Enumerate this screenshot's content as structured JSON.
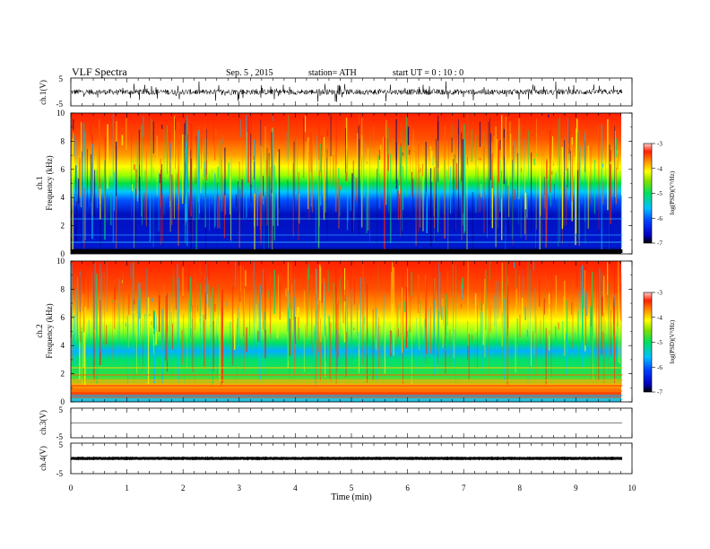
{
  "header": {
    "title": "VLF  Spectra",
    "date": "Sep. 5  , 2015",
    "station": "station= ATH",
    "start": "start  UT  =   0  : 10 : 0"
  },
  "chart_data": [
    {
      "type": "line",
      "ylabel": "ch.1(V)",
      "ylim": [
        -5,
        5
      ],
      "y_ticks": [
        "5",
        "-5"
      ],
      "description_values": {
        "baseline": 0,
        "noise_amplitude_approx": 2.5
      }
    },
    {
      "type": "heatmap",
      "ylabel_channel": "ch.1",
      "ylabel": "Frequency  (kHz)",
      "ylim": [
        0,
        10
      ],
      "y_ticks": [
        "0",
        "2",
        "4",
        "6",
        "8",
        "10"
      ],
      "colorbar": {
        "label": "log(PSD)(V²/Hz)",
        "range": [
          -7,
          -3
        ],
        "ticks": [
          "-3",
          "-4",
          "-5",
          "-6",
          "-7"
        ]
      }
    },
    {
      "type": "heatmap",
      "ylabel_channel": "ch.2",
      "ylabel": "Frequency  (kHz)",
      "ylim": [
        0,
        10
      ],
      "y_ticks": [
        "0",
        "2",
        "4",
        "6",
        "8",
        "10"
      ],
      "colorbar": {
        "label": "log(PSD)(V²/Hz)",
        "range": [
          -7,
          -3
        ],
        "ticks": [
          "-3",
          "-4",
          "-5",
          "-6",
          "-7"
        ]
      }
    },
    {
      "type": "line",
      "ylabel": "ch.3(V)",
      "ylim": [
        -5,
        5
      ],
      "y_ticks": [
        "5",
        "-5"
      ],
      "description_values": {
        "baseline": 0,
        "noise_amplitude_approx": 0.1
      }
    },
    {
      "type": "line",
      "ylabel": "ch.4(V)",
      "ylim": [
        -5,
        5
      ],
      "y_ticks": [
        "5",
        "-5"
      ],
      "description_values": {
        "baseline": 0,
        "noise_amplitude_approx": 0.2
      }
    }
  ],
  "x_axis": {
    "label": "Time  (min)",
    "range": [
      0,
      10
    ],
    "data_end": 9.83,
    "ticks": [
      "0",
      "1",
      "2",
      "3",
      "4",
      "5",
      "6",
      "7",
      "8",
      "9",
      "10"
    ]
  }
}
